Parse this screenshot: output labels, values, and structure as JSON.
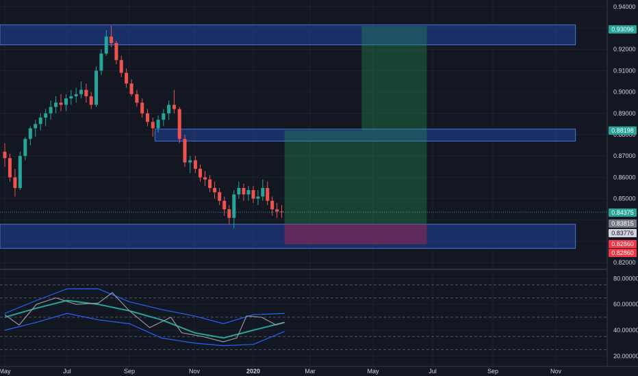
{
  "chart_data": [
    {
      "type": "candlestick",
      "title": "",
      "x_tick_labels": [
        "May",
        "Jul",
        "Sep",
        "Nov",
        "2020",
        "Mar",
        "May",
        "Jul",
        "Sep",
        "Nov"
      ],
      "x_tick_dates": [
        "2019-05-01",
        "2019-07-01",
        "2019-09-01",
        "2019-11-01",
        "2020-01-01",
        "2020-03-01",
        "2020-05-01",
        "2020-07-01",
        "2020-09-01",
        "2020-11-01"
      ],
      "x_range": [
        "2019-05-01",
        "2020-11-15"
      ],
      "ylim": [
        0.8175,
        0.9425
      ],
      "y_ticks": [
        0.82,
        0.83,
        0.84,
        0.85,
        0.86,
        0.87,
        0.88,
        0.89,
        0.9,
        0.91,
        0.92,
        0.93,
        0.94
      ],
      "y_tick_labels": [
        "0.82000",
        "",
        "",
        "0.85000",
        "0.86000",
        "0.87000",
        "0.88000",
        "0.89000",
        "0.90000",
        "0.91000",
        "0.92000",
        "",
        "0.94000"
      ],
      "price_path": [
        [
          "2019-05-01",
          0.872
        ],
        [
          "2019-05-10",
          0.853
        ],
        [
          "2019-05-15",
          0.861
        ],
        [
          "2019-05-25",
          0.878
        ],
        [
          "2019-06-05",
          0.889
        ],
        [
          "2019-06-20",
          0.895
        ],
        [
          "2019-07-05",
          0.898
        ],
        [
          "2019-07-20",
          0.901
        ],
        [
          "2019-07-29",
          0.893
        ],
        [
          "2019-08-05",
          0.911
        ],
        [
          "2019-08-12",
          0.925
        ],
        [
          "2019-08-14",
          0.929
        ],
        [
          "2019-08-20",
          0.918
        ],
        [
          "2019-09-01",
          0.903
        ],
        [
          "2019-09-15",
          0.891
        ],
        [
          "2019-09-25",
          0.883
        ],
        [
          "2019-10-01",
          0.886
        ],
        [
          "2019-10-10",
          0.893
        ],
        [
          "2019-10-14",
          0.899
        ],
        [
          "2019-10-20",
          0.873
        ],
        [
          "2019-10-25",
          0.865
        ],
        [
          "2019-11-01",
          0.866
        ],
        [
          "2019-11-15",
          0.859
        ],
        [
          "2019-12-01",
          0.852
        ],
        [
          "2019-12-10",
          0.84
        ],
        [
          "2019-12-13",
          0.836
        ],
        [
          "2019-12-20",
          0.849
        ],
        [
          "2019-12-30",
          0.854
        ],
        [
          "2020-01-05",
          0.851
        ],
        [
          "2020-01-15",
          0.855
        ],
        [
          "2020-01-25",
          0.847
        ],
        [
          "2020-01-31",
          0.844
        ],
        [
          "2020-02-03",
          0.8437
        ]
      ],
      "series": [
        {
          "name": "",
          "values": [
            [
              "2019-05-01",
              0.872,
              0.876,
              0.865,
              0.869
            ],
            [
              "2019-05-06",
              0.869,
              0.871,
              0.858,
              0.86
            ],
            [
              "2019-05-11",
              0.86,
              0.864,
              0.851,
              0.855
            ],
            [
              "2019-05-16",
              0.855,
              0.872,
              0.854,
              0.87
            ],
            [
              "2019-05-21",
              0.87,
              0.879,
              0.868,
              0.878
            ],
            [
              "2019-05-26",
              0.878,
              0.884,
              0.875,
              0.883
            ],
            [
              "2019-05-31",
              0.883,
              0.887,
              0.879,
              0.885
            ],
            [
              "2019-06-05",
              0.885,
              0.89,
              0.882,
              0.888
            ],
            [
              "2019-06-10",
              0.888,
              0.892,
              0.884,
              0.89
            ],
            [
              "2019-06-15",
              0.89,
              0.896,
              0.887,
              0.893
            ],
            [
              "2019-06-20",
              0.893,
              0.898,
              0.89,
              0.895
            ],
            [
              "2019-06-25",
              0.895,
              0.899,
              0.891,
              0.894
            ],
            [
              "2019-06-30",
              0.894,
              0.899,
              0.891,
              0.897
            ],
            [
              "2019-07-05",
              0.897,
              0.901,
              0.894,
              0.898
            ],
            [
              "2019-07-10",
              0.898,
              0.902,
              0.895,
              0.899
            ],
            [
              "2019-07-15",
              0.899,
              0.905,
              0.897,
              0.901
            ],
            [
              "2019-07-20",
              0.901,
              0.904,
              0.895,
              0.898
            ],
            [
              "2019-07-25",
              0.898,
              0.9,
              0.892,
              0.894
            ],
            [
              "2019-07-30",
              0.894,
              0.912,
              0.893,
              0.91
            ],
            [
              "2019-08-04",
              0.91,
              0.92,
              0.908,
              0.918
            ],
            [
              "2019-08-09",
              0.918,
              0.929,
              0.917,
              0.926
            ],
            [
              "2019-08-14",
              0.926,
              0.931,
              0.921,
              0.923
            ],
            [
              "2019-08-19",
              0.923,
              0.924,
              0.913,
              0.915
            ],
            [
              "2019-08-24",
              0.915,
              0.917,
              0.907,
              0.909
            ],
            [
              "2019-08-29",
              0.909,
              0.911,
              0.902,
              0.904
            ],
            [
              "2019-09-03",
              0.904,
              0.906,
              0.898,
              0.899
            ],
            [
              "2019-09-08",
              0.899,
              0.901,
              0.893,
              0.895
            ],
            [
              "2019-09-13",
              0.895,
              0.897,
              0.888,
              0.89
            ],
            [
              "2019-09-18",
              0.89,
              0.892,
              0.884,
              0.886
            ],
            [
              "2019-09-23",
              0.886,
              0.888,
              0.879,
              0.883
            ],
            [
              "2019-09-28",
              0.883,
              0.889,
              0.881,
              0.887
            ],
            [
              "2019-10-03",
              0.887,
              0.892,
              0.884,
              0.89
            ],
            [
              "2019-10-08",
              0.89,
              0.896,
              0.887,
              0.894
            ],
            [
              "2019-10-13",
              0.894,
              0.901,
              0.89,
              0.892
            ],
            [
              "2019-10-18",
              0.892,
              0.893,
              0.876,
              0.878
            ],
            [
              "2019-10-23",
              0.878,
              0.88,
              0.865,
              0.867
            ],
            [
              "2019-10-28",
              0.867,
              0.87,
              0.862,
              0.868
            ],
            [
              "2019-11-02",
              0.868,
              0.87,
              0.862,
              0.864
            ],
            [
              "2019-11-07",
              0.864,
              0.866,
              0.858,
              0.86
            ],
            [
              "2019-11-12",
              0.86,
              0.863,
              0.856,
              0.859
            ],
            [
              "2019-11-17",
              0.859,
              0.861,
              0.853,
              0.855
            ],
            [
              "2019-11-22",
              0.855,
              0.858,
              0.85,
              0.853
            ],
            [
              "2019-11-27",
              0.853,
              0.855,
              0.847,
              0.849
            ],
            [
              "2019-12-02",
              0.849,
              0.851,
              0.842,
              0.845
            ],
            [
              "2019-12-07",
              0.845,
              0.847,
              0.838,
              0.841
            ],
            [
              "2019-12-12",
              0.841,
              0.854,
              0.836,
              0.852
            ],
            [
              "2019-12-17",
              0.852,
              0.858,
              0.85,
              0.855
            ],
            [
              "2019-12-22",
              0.855,
              0.857,
              0.849,
              0.852
            ],
            [
              "2019-12-27",
              0.852,
              0.856,
              0.849,
              0.854
            ],
            [
              "2020-01-01",
              0.854,
              0.856,
              0.848,
              0.85
            ],
            [
              "2020-01-06",
              0.85,
              0.854,
              0.847,
              0.851
            ],
            [
              "2020-01-11",
              0.851,
              0.859,
              0.849,
              0.855
            ],
            [
              "2020-01-16",
              0.855,
              0.858,
              0.847,
              0.849
            ],
            [
              "2020-01-21",
              0.849,
              0.851,
              0.842,
              0.845
            ],
            [
              "2020-01-26",
              0.845,
              0.848,
              0.841,
              0.844
            ],
            [
              "2020-01-31",
              0.844,
              0.847,
              0.841,
              0.8437
            ]
          ]
        }
      ],
      "zones": [
        {
          "name": "supply-zone-upper",
          "date_start": "2019-04-20",
          "date_end": "2020-11-20",
          "price_low": 0.9221,
          "price_high": 0.9315
        },
        {
          "name": "zone-middle",
          "date_start": "2019-09-25",
          "date_end": "2020-11-20",
          "price_low": 0.877,
          "price_high": 0.8826
        },
        {
          "name": "demand-zone-lower",
          "date_start": "2019-04-20",
          "date_end": "2020-11-20",
          "price_low": 0.8267,
          "price_high": 0.838
        }
      ],
      "position": {
        "entry_date": "2020-02-03",
        "exit_date": "2020-06-25",
        "entry": 0.8381,
        "stop": 0.8286,
        "target": 0.882,
        "target_zone_start": "2020-04-20",
        "target_zone_top": 0.931
      },
      "price_tags": [
        {
          "label": "0.93096",
          "color": "#26a69a",
          "text_color": "#ffffff"
        },
        {
          "label": "0.88198",
          "color": "#26a69a",
          "text_color": "#ffffff"
        },
        {
          "label": "0.84375",
          "color": "#26a69a",
          "text_color": "#ffffff"
        },
        {
          "label": "0.83815",
          "color": "#787b86",
          "text_color": "#ffffff"
        },
        {
          "label": "0.83776",
          "color": "#d1d4dc",
          "text_color": "#131722"
        },
        {
          "label": "0.82860",
          "color": "#f23645",
          "text_color": "#ffffff"
        },
        {
          "label": "0.82860",
          "color": "#f23645",
          "text_color": "#ffffff"
        }
      ],
      "current_price": 0.8437
    },
    {
      "type": "line",
      "title": "",
      "ylim": [
        13,
        86
      ],
      "y_ticks": [
        20,
        40,
        60,
        80
      ],
      "y_tick_labels": [
        "20.00000",
        "40.00000",
        "60.00000",
        "80.00000"
      ],
      "dashed_levels": [
        25,
        35,
        50,
        65,
        75
      ],
      "series": [
        {
          "name": "",
          "color": "#26a69a",
          "values": [
            [
              "2019-05-01",
              50
            ],
            [
              "2019-06-01",
              57
            ],
            [
              "2019-07-01",
              63
            ],
            [
              "2019-08-01",
              60
            ],
            [
              "2019-09-01",
              55
            ],
            [
              "2019-10-01",
              48
            ],
            [
              "2019-11-01",
              38
            ],
            [
              "2019-12-01",
              34
            ],
            [
              "2020-01-01",
              40
            ],
            [
              "2020-02-03",
              46
            ]
          ]
        },
        {
          "name": "",
          "color": "#2962ff",
          "values": [
            [
              "2019-05-01",
              53
            ],
            [
              "2019-06-01",
              63
            ],
            [
              "2019-07-01",
              72
            ],
            [
              "2019-08-01",
              72
            ],
            [
              "2019-09-01",
              62
            ],
            [
              "2019-10-01",
              56
            ],
            [
              "2019-11-01",
              51
            ],
            [
              "2019-12-01",
              45
            ],
            [
              "2020-01-01",
              52
            ],
            [
              "2020-02-03",
              53
            ]
          ]
        },
        {
          "name": "",
          "color": "#2962ff",
          "values": [
            [
              "2019-05-01",
              40
            ],
            [
              "2019-06-01",
              46
            ],
            [
              "2019-07-01",
              53
            ],
            [
              "2019-08-01",
              48
            ],
            [
              "2019-09-01",
              45
            ],
            [
              "2019-10-01",
              34
            ],
            [
              "2019-11-01",
              30
            ],
            [
              "2019-12-01",
              28
            ],
            [
              "2020-01-01",
              29
            ],
            [
              "2020-02-03",
              39
            ]
          ]
        },
        {
          "name": "",
          "color": "#9598a1",
          "values": [
            [
              "2019-05-01",
              52
            ],
            [
              "2019-05-15",
              44
            ],
            [
              "2019-06-01",
              60
            ],
            [
              "2019-06-20",
              65
            ],
            [
              "2019-07-10",
              60
            ],
            [
              "2019-08-01",
              61
            ],
            [
              "2019-08-15",
              69
            ],
            [
              "2019-09-01",
              55
            ],
            [
              "2019-09-20",
              42
            ],
            [
              "2019-10-10",
              50
            ],
            [
              "2019-10-20",
              38
            ],
            [
              "2019-11-10",
              35
            ],
            [
              "2019-12-01",
              31
            ],
            [
              "2019-12-15",
              34
            ],
            [
              "2019-12-25",
              51
            ],
            [
              "2020-01-10",
              50
            ],
            [
              "2020-01-25",
              44
            ],
            [
              "2020-02-03",
              46
            ]
          ]
        }
      ]
    }
  ]
}
